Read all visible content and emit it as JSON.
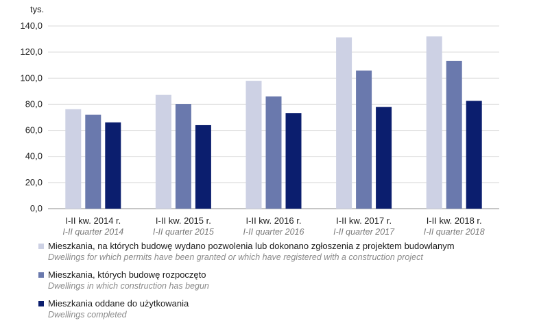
{
  "chart_data": {
    "type": "bar",
    "unit_label": "tys.",
    "y_ticks": [
      "140,0",
      "120,0",
      "100,0",
      "80,0",
      "60,0",
      "40,0",
      "20,0",
      "0,0"
    ],
    "ylim": [
      0,
      140
    ],
    "categories": [
      {
        "pl": "I-II kw. 2014 r.",
        "en": "I-II quarter 2014"
      },
      {
        "pl": "I-II kw. 2015 r.",
        "en": "I-II quarter 2015"
      },
      {
        "pl": "I-II kw. 2016 r.",
        "en": "I-II quarter 2016"
      },
      {
        "pl": "I-II kw. 2017 r.",
        "en": "I-II quarter 2017"
      },
      {
        "pl": "I-II kw. 2018 r.",
        "en": "I-II quarter 2018"
      }
    ],
    "series": [
      {
        "name": "Mieszkania, na których budowę wydano pozwolenia lub dokonano zgłoszenia z projektem budowlanym",
        "name_en": "Dwellings for which permits have been granted or which have registered with a construction project",
        "color": "#cdd1e4",
        "values": [
          76.3,
          87.2,
          98.0,
          131.3,
          132.0
        ]
      },
      {
        "name": "Mieszkania, których budowę rozpoczęto",
        "name_en": "Dwellings in which construction has begun",
        "color": "#6a79ad",
        "values": [
          72.0,
          80.2,
          86.0,
          105.8,
          113.3
        ]
      },
      {
        "name": "Mieszkania oddane do użytkowania",
        "name_en": "Dwellings completed",
        "color": "#0b1e6e",
        "values": [
          66.1,
          64.0,
          73.3,
          78.0,
          82.6
        ]
      }
    ],
    "grid": true,
    "legend": "bottom"
  }
}
